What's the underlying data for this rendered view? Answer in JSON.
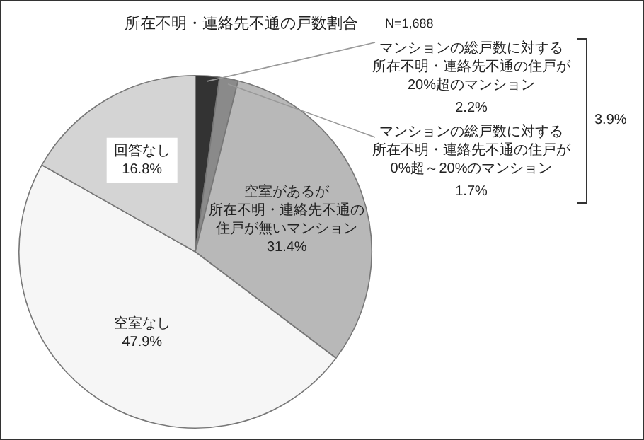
{
  "chart_data": {
    "type": "pie",
    "title": "所在不明・連絡先不通の戸数割合",
    "subtitle": "N=1,688",
    "categories": [
      "マンションの総戸数に対する所在不明・連絡先不通の住戸が20%超のマンション",
      "マンションの総戸数に対する所在不明・連絡先不通の住戸が0%超～20%のマンション",
      "空室があるが所在不明・連絡先不通の住戸が無いマンション",
      "空室なし",
      "回答なし"
    ],
    "values": [
      2.2,
      1.7,
      31.4,
      47.9,
      16.8
    ],
    "value_labels": [
      "2.2%",
      "1.7%",
      "31.4%",
      "47.9%",
      "16.8%"
    ],
    "colors": [
      "#333333",
      "#8a8a8a",
      "#b8b8b8",
      "#f6f6f6",
      "#d4d4d4"
    ],
    "annotations": [
      "3.9%"
    ]
  }
}
